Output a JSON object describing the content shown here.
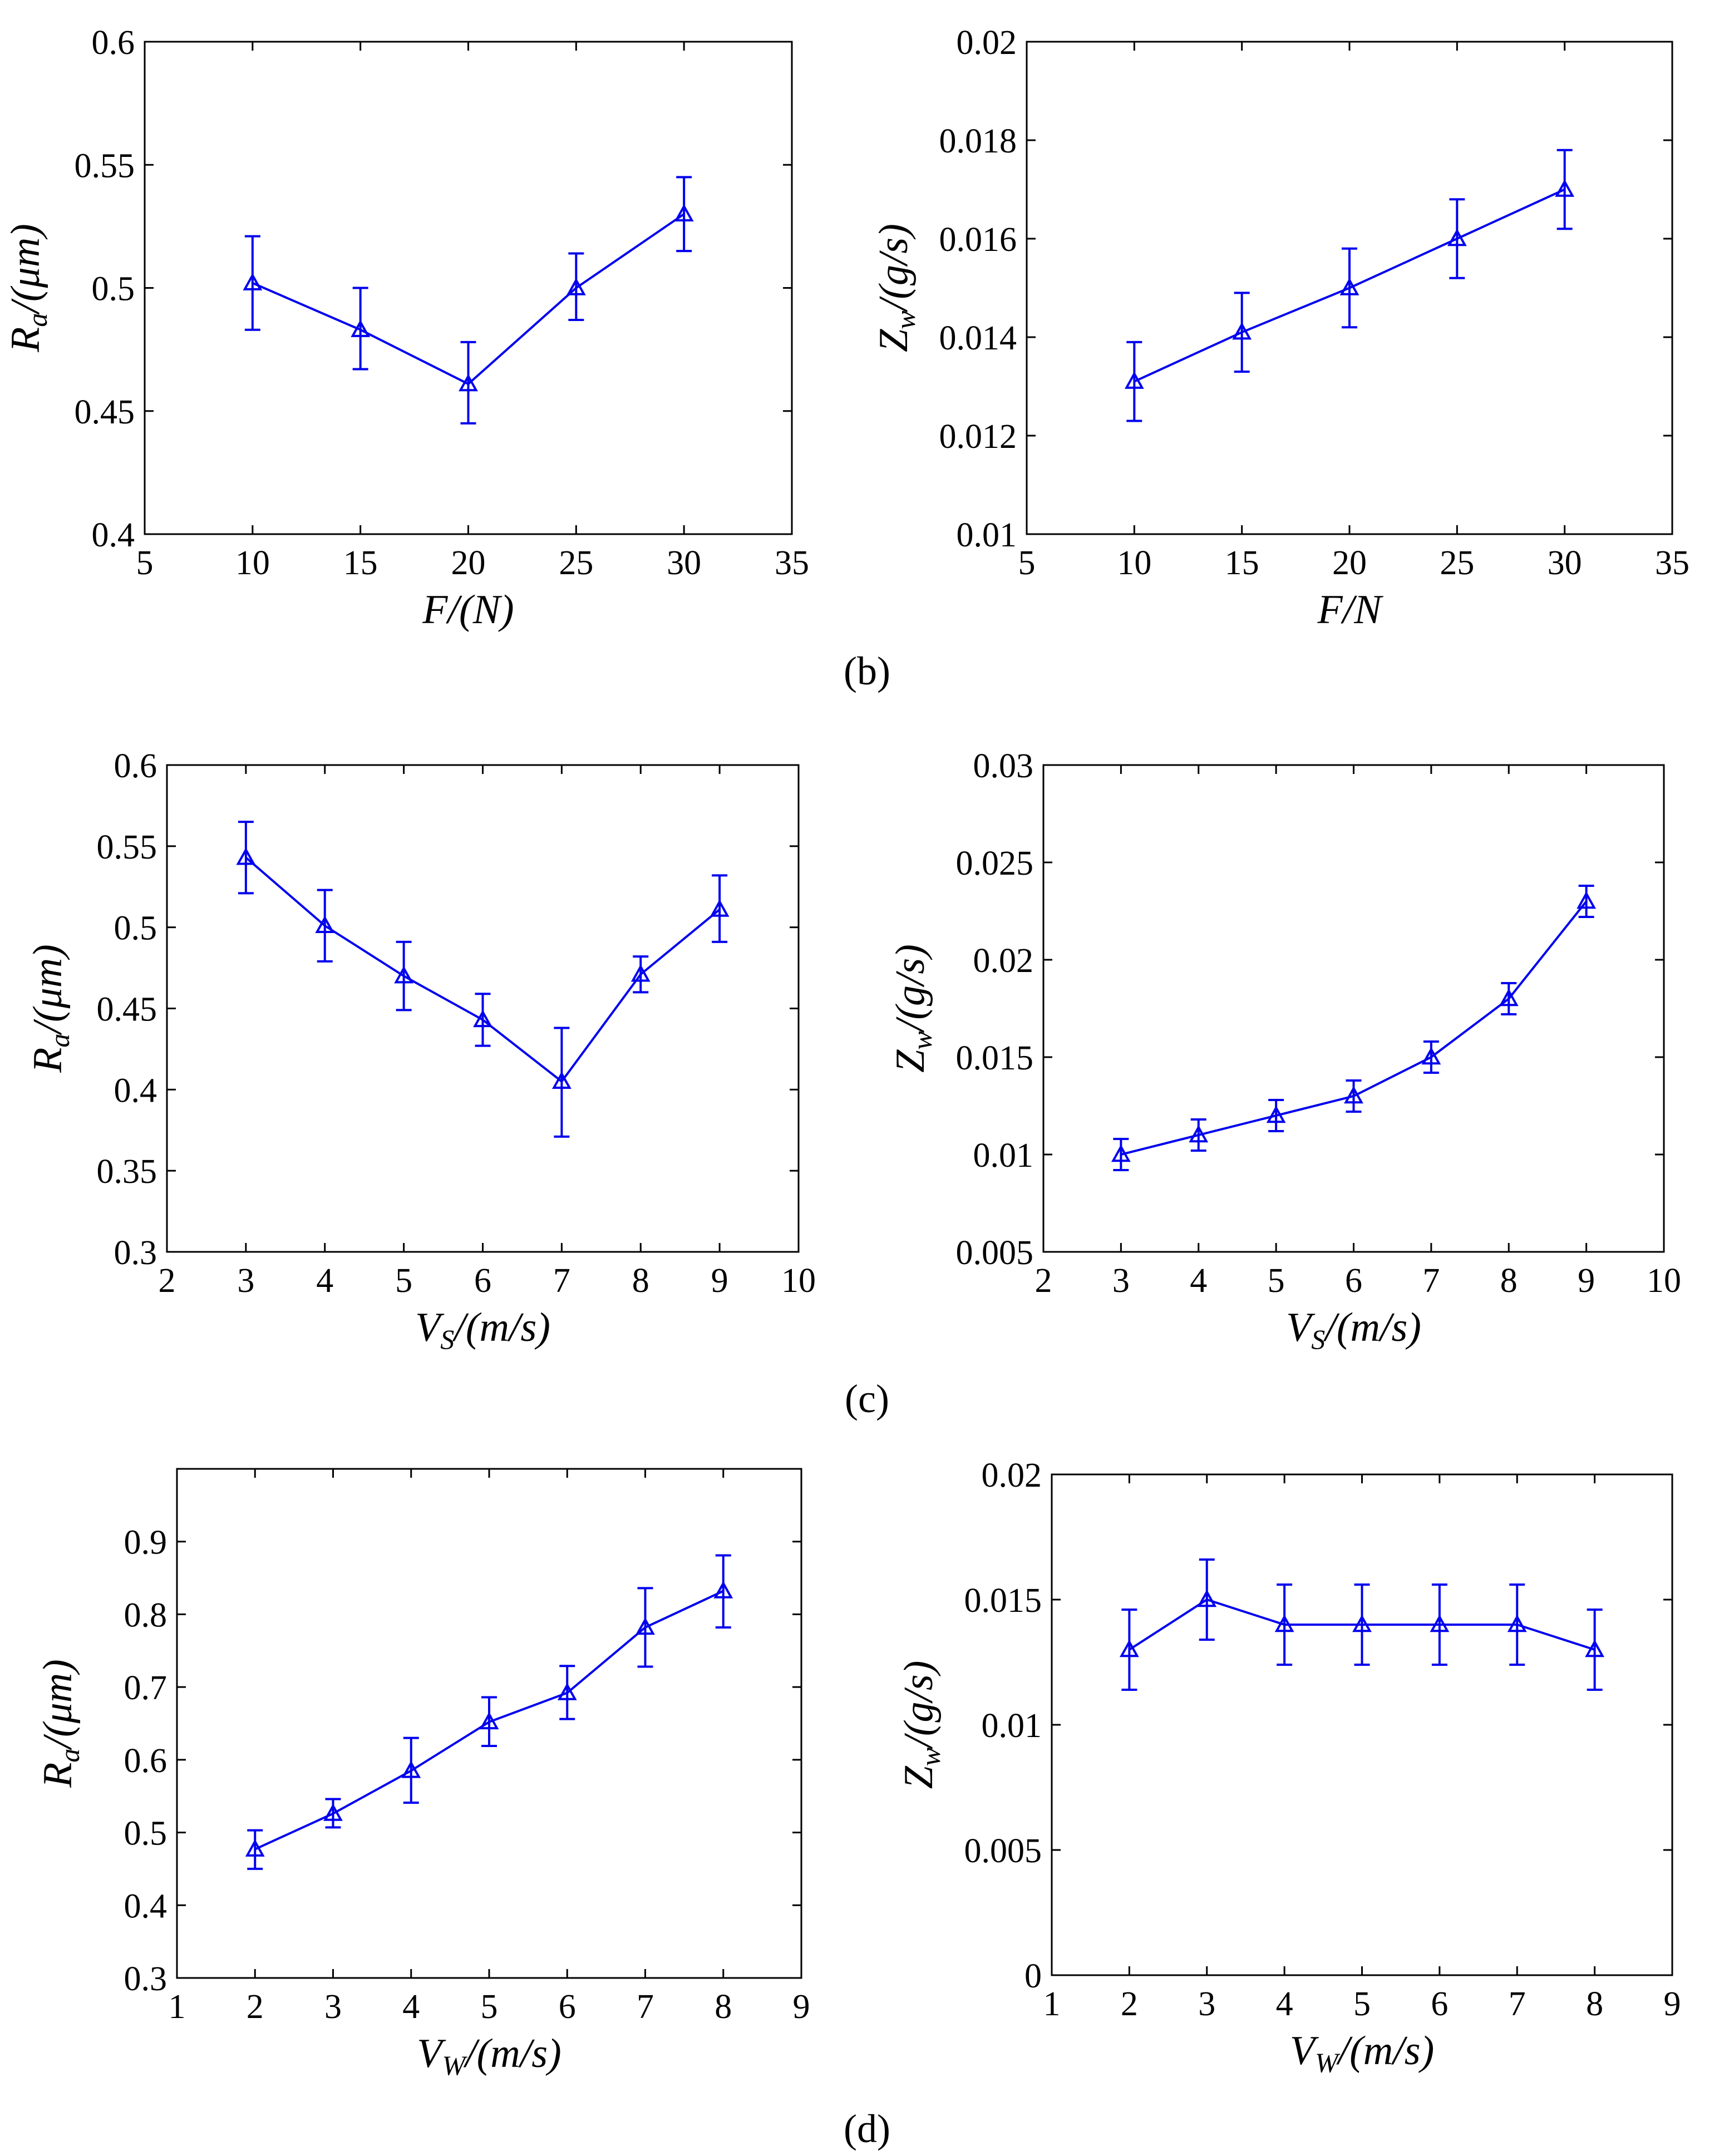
{
  "chart_data": [
    {
      "type": "line",
      "id": "b-left",
      "xlabel": {
        "main": "F",
        "sub": "",
        "unit": "(N)"
      },
      "ylabel": {
        "main": "R",
        "sub": "a",
        "unit": "(μm)"
      },
      "xlim": [
        5,
        35
      ],
      "ylim": [
        0.4,
        0.6
      ],
      "xticks": [
        5,
        10,
        15,
        20,
        25,
        30,
        35
      ],
      "yticks": [
        0.4,
        0.45,
        0.5,
        0.55,
        0.6
      ],
      "xtick_labels": [
        "5",
        "10",
        "15",
        "20",
        "25",
        "30",
        "35"
      ],
      "ytick_labels": [
        "0.4",
        "0.45",
        "0.5",
        "0.55",
        "0.6"
      ],
      "x": [
        10,
        15,
        20,
        25,
        30
      ],
      "y": [
        0.502,
        0.483,
        0.461,
        0.5,
        0.53
      ],
      "err_low": [
        0.483,
        0.467,
        0.445,
        0.487,
        0.515
      ],
      "err_high": [
        0.521,
        0.5,
        0.478,
        0.514,
        0.545
      ],
      "grid": false
    },
    {
      "type": "line",
      "id": "b-right",
      "xlabel": {
        "main": "F",
        "sub": "",
        "unit": "N"
      },
      "ylabel": {
        "main": "Z",
        "sub": "w",
        "unit": "(g/s)"
      },
      "xlim": [
        5,
        35
      ],
      "ylim": [
        0.01,
        0.02
      ],
      "xticks": [
        5,
        10,
        15,
        20,
        25,
        30,
        35
      ],
      "yticks": [
        0.01,
        0.012,
        0.014,
        0.016,
        0.018,
        0.02
      ],
      "xtick_labels": [
        "5",
        "10",
        "15",
        "20",
        "25",
        "30",
        "35"
      ],
      "ytick_labels": [
        "0.01",
        "0.012",
        "0.014",
        "0.016",
        "0.018",
        "0.02"
      ],
      "x": [
        10,
        15,
        20,
        25,
        30
      ],
      "y": [
        0.0131,
        0.0141,
        0.015,
        0.016,
        0.017
      ],
      "err_low": [
        0.0123,
        0.0133,
        0.0142,
        0.0152,
        0.0162
      ],
      "err_high": [
        0.0139,
        0.0149,
        0.0158,
        0.0168,
        0.0178
      ],
      "grid": false
    },
    {
      "type": "line",
      "id": "c-left",
      "xlabel": {
        "main": "V",
        "sub": "S",
        "unit": "(m/s)"
      },
      "ylabel": {
        "main": "R",
        "sub": "a",
        "unit": "(μm)"
      },
      "xlim": [
        2,
        10
      ],
      "ylim": [
        0.3,
        0.6
      ],
      "xticks": [
        2,
        3,
        4,
        5,
        6,
        7,
        8,
        9,
        10
      ],
      "yticks": [
        0.3,
        0.35,
        0.4,
        0.45,
        0.5,
        0.55,
        0.6
      ],
      "xtick_labels": [
        "2",
        "3",
        "4",
        "5",
        "6",
        "7",
        "8",
        "9",
        "10"
      ],
      "ytick_labels": [
        "0.3",
        "0.35",
        "0.4",
        "0.45",
        "0.5",
        "0.55",
        "0.6"
      ],
      "x": [
        3,
        4,
        5,
        6,
        7,
        8,
        9
      ],
      "y": [
        0.543,
        0.501,
        0.47,
        0.443,
        0.405,
        0.471,
        0.511
      ],
      "err_low": [
        0.521,
        0.479,
        0.449,
        0.427,
        0.371,
        0.46,
        0.491
      ],
      "err_high": [
        0.565,
        0.523,
        0.491,
        0.459,
        0.438,
        0.482,
        0.532
      ],
      "grid": false
    },
    {
      "type": "line",
      "id": "c-right",
      "xlabel": {
        "main": "V",
        "sub": "S",
        "unit": "(m/s)"
      },
      "ylabel": {
        "main": "Z",
        "sub": "w",
        "unit": "(g/s)"
      },
      "xlim": [
        2,
        10
      ],
      "ylim": [
        0.005,
        0.03
      ],
      "xticks": [
        2,
        3,
        4,
        5,
        6,
        7,
        8,
        9,
        10
      ],
      "yticks": [
        0.005,
        0.01,
        0.015,
        0.02,
        0.025,
        0.03
      ],
      "xtick_labels": [
        "2",
        "3",
        "4",
        "5",
        "6",
        "7",
        "8",
        "9",
        "10"
      ],
      "ytick_labels": [
        "0.005",
        "0.01",
        "0.015",
        "0.02",
        "0.025",
        "0.03"
      ],
      "x": [
        3,
        4,
        5,
        6,
        7,
        8,
        9
      ],
      "y": [
        0.01,
        0.011,
        0.012,
        0.013,
        0.015,
        0.018,
        0.023
      ],
      "err_low": [
        0.0092,
        0.0102,
        0.0112,
        0.0122,
        0.0142,
        0.0172,
        0.0222
      ],
      "err_high": [
        0.0108,
        0.0118,
        0.0128,
        0.0138,
        0.0158,
        0.0188,
        0.0238
      ],
      "grid": false
    },
    {
      "type": "line",
      "id": "d-left",
      "xlabel": {
        "main": "V",
        "sub": "W",
        "unit": "(m/s)"
      },
      "ylabel": {
        "main": "R",
        "sub": "a",
        "unit": "(μm)"
      },
      "xlim": [
        1,
        9
      ],
      "ylim": [
        0.3,
        1.0
      ],
      "xticks": [
        1,
        2,
        3,
        4,
        5,
        6,
        7,
        8,
        9
      ],
      "yticks": [
        0.3,
        0.4,
        0.5,
        0.6,
        0.7,
        0.8,
        0.9
      ],
      "xtick_labels": [
        "1",
        "2",
        "3",
        "4",
        "5",
        "6",
        "7",
        "8",
        "9"
      ],
      "ytick_labels": [
        "0.3",
        "0.4",
        "0.5",
        "0.6",
        "0.7",
        "0.8",
        "0.9"
      ],
      "x": [
        2,
        3,
        4,
        5,
        6,
        7,
        8
      ],
      "y": [
        0.477,
        0.526,
        0.585,
        0.652,
        0.692,
        0.782,
        0.832
      ],
      "err_low": [
        0.45,
        0.507,
        0.541,
        0.619,
        0.656,
        0.728,
        0.782
      ],
      "err_high": [
        0.503,
        0.546,
        0.63,
        0.686,
        0.729,
        0.836,
        0.881
      ],
      "grid": false
    },
    {
      "type": "line",
      "id": "d-right",
      "xlabel": {
        "main": "V",
        "sub": "W",
        "unit": "(m/s)"
      },
      "ylabel": {
        "main": "Z",
        "sub": "w",
        "unit": "(g/s)"
      },
      "xlim": [
        1,
        9
      ],
      "ylim": [
        0,
        0.02
      ],
      "xticks": [
        1,
        2,
        3,
        4,
        5,
        6,
        7,
        8,
        9
      ],
      "yticks": [
        0,
        0.005,
        0.01,
        0.015,
        0.02
      ],
      "xtick_labels": [
        "1",
        "2",
        "3",
        "4",
        "5",
        "6",
        "7",
        "8",
        "9"
      ],
      "ytick_labels": [
        "0",
        "0.005",
        "0.01",
        "0.015",
        "0.02"
      ],
      "x": [
        2,
        3,
        4,
        5,
        6,
        7,
        8
      ],
      "y": [
        0.013,
        0.015,
        0.014,
        0.014,
        0.014,
        0.014,
        0.013
      ],
      "err_low": [
        0.0114,
        0.0134,
        0.0124,
        0.0124,
        0.0124,
        0.0124,
        0.0114
      ],
      "err_high": [
        0.0146,
        0.0166,
        0.0156,
        0.0156,
        0.0156,
        0.0156,
        0.0146
      ],
      "grid": false
    }
  ],
  "captions": {
    "b": "(b)",
    "c": "(c)",
    "d": "(d)"
  },
  "colors": {
    "series": "#0000ee",
    "axes": "#000000",
    "background": "#ffffff"
  },
  "marker": "triangle-outline"
}
